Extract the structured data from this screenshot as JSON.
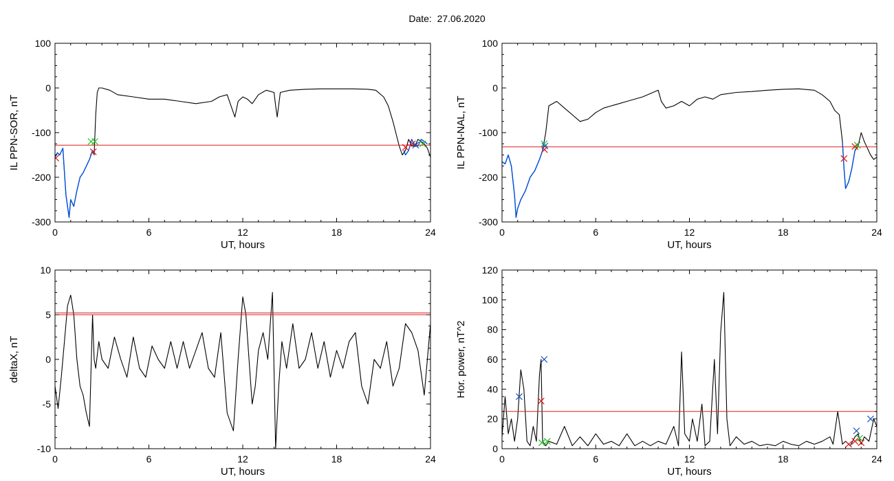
{
  "figure": {
    "date_label": "Date:",
    "date_value": "27.06.2020"
  },
  "colors": {
    "trace": "#000000",
    "highlight": "#0050dc",
    "threshold": "#dc1e1e",
    "marker_red": "#e01010",
    "marker_green": "#20c020",
    "marker_blue": "#1050c0",
    "axes": "#000000"
  },
  "chart_data": [
    {
      "type": "line",
      "id": "top-left",
      "xlabel": "UT, hours",
      "ylabel": "IL PPN-SOR, nT",
      "xlim": [
        0,
        24
      ],
      "ylim": [
        -300,
        100
      ],
      "xticks": [
        0,
        6,
        12,
        18,
        24
      ],
      "yticks": [
        -300,
        -200,
        -100,
        0,
        100
      ],
      "series": [
        {
          "role": "trace",
          "x": [
            0,
            0.15,
            0.3,
            0.5,
            0.7,
            0.8,
            0.9,
            1.0,
            1.2,
            1.4,
            1.6,
            1.8,
            2.0,
            2.2,
            2.4,
            2.5,
            2.6,
            2.7,
            2.8,
            3.0,
            3.5,
            4,
            5,
            6,
            7,
            8,
            9,
            10,
            10.5,
            11,
            11.2,
            11.5,
            11.7,
            12,
            12.3,
            12.6,
            13,
            13.5,
            14,
            14.1,
            14.2,
            14.4,
            15,
            16,
            17,
            18,
            19,
            20,
            20.5,
            21,
            21.3,
            21.6,
            22,
            22.2,
            22.4,
            22.6,
            22.8,
            23,
            23.2,
            23.4,
            23.6,
            23.8,
            24
          ],
          "y": [
            -155,
            -145,
            -150,
            -135,
            -240,
            -265,
            -290,
            -250,
            -265,
            -230,
            -200,
            -190,
            -175,
            -160,
            -140,
            -150,
            -60,
            -10,
            0,
            0,
            -5,
            -15,
            -20,
            -25,
            -25,
            -30,
            -35,
            -30,
            -20,
            -15,
            -35,
            -65,
            -30,
            -20,
            -25,
            -35,
            -15,
            -5,
            -10,
            -40,
            -65,
            -10,
            -5,
            -3,
            -2,
            -2,
            -2,
            -3,
            -5,
            -20,
            -40,
            -75,
            -130,
            -150,
            -140,
            -115,
            -130,
            -130,
            -115,
            -120,
            -125,
            -135,
            -155
          ]
        },
        {
          "role": "highlight",
          "x": [
            0,
            0.15,
            0.3,
            0.5,
            0.7,
            0.8,
            0.9,
            1.0,
            1.2,
            1.4,
            1.6,
            1.8,
            2.0,
            2.2,
            2.4,
            2.5
          ],
          "y": [
            -155,
            -145,
            -150,
            -135,
            -240,
            -265,
            -290,
            -250,
            -265,
            -230,
            -200,
            -190,
            -175,
            -160,
            -140,
            -150
          ]
        },
        {
          "role": "highlight",
          "x": [
            22.3,
            22.4,
            22.6,
            22.8,
            23,
            23.2,
            23.4,
            23.6,
            23.8
          ],
          "y": [
            -140,
            -150,
            -140,
            -115,
            -130,
            -130,
            -115,
            -120,
            -125
          ]
        },
        {
          "role": "threshold",
          "x": [
            0,
            24
          ],
          "y": [
            -128,
            -128
          ]
        }
      ],
      "markers": [
        {
          "x": 0.05,
          "y": -157,
          "color": "red"
        },
        {
          "x": 2.3,
          "y": -120,
          "color": "green"
        },
        {
          "x": 2.55,
          "y": -120,
          "color": "green"
        },
        {
          "x": 2.45,
          "y": -143,
          "color": "red"
        },
        {
          "x": 22.4,
          "y": -133,
          "color": "red"
        },
        {
          "x": 22.85,
          "y": -125,
          "color": "red"
        },
        {
          "x": 23.05,
          "y": -128,
          "color": "blue"
        },
        {
          "x": 23.5,
          "y": -125,
          "color": "green"
        }
      ]
    },
    {
      "type": "line",
      "id": "top-right",
      "xlabel": "UT, hours",
      "ylabel": "IL PPN-NAL, nT",
      "xlim": [
        0,
        24
      ],
      "ylim": [
        -300,
        100
      ],
      "xticks": [
        0,
        6,
        12,
        18,
        24
      ],
      "yticks": [
        -300,
        -200,
        -100,
        0,
        100
      ],
      "series": [
        {
          "role": "trace",
          "x": [
            0,
            0.2,
            0.4,
            0.6,
            0.8,
            0.9,
            1.0,
            1.2,
            1.5,
            1.8,
            2.1,
            2.4,
            2.6,
            2.7,
            2.8,
            3.0,
            3.5,
            4,
            4.5,
            5,
            5.5,
            6,
            6.5,
            7,
            7.5,
            8,
            9,
            10,
            10.2,
            10.5,
            11,
            11.5,
            12,
            12.5,
            13,
            13.5,
            14,
            15,
            16,
            17,
            18,
            19,
            20,
            20.5,
            21,
            21.3,
            21.6,
            21.8,
            21.9,
            22,
            22.2,
            22.4,
            22.6,
            22.8,
            23,
            23.2,
            23.4,
            23.6,
            23.8,
            24
          ],
          "y": [
            -165,
            -170,
            -150,
            -175,
            -240,
            -290,
            -270,
            -250,
            -230,
            -200,
            -185,
            -160,
            -140,
            -120,
            -100,
            -40,
            -30,
            -45,
            -60,
            -75,
            -70,
            -55,
            -45,
            -40,
            -35,
            -30,
            -20,
            -5,
            -30,
            -45,
            -40,
            -30,
            -40,
            -25,
            -20,
            -25,
            -15,
            -10,
            -8,
            -5,
            -3,
            -2,
            -5,
            -15,
            -30,
            -50,
            -60,
            -120,
            -180,
            -225,
            -210,
            -180,
            -140,
            -130,
            -100,
            -120,
            -135,
            -150,
            -160,
            -155
          ]
        },
        {
          "role": "highlight",
          "x": [
            0,
            0.2,
            0.4,
            0.6,
            0.8,
            0.9,
            1.0,
            1.2,
            1.5,
            1.8,
            2.1,
            2.4,
            2.6,
            2.7
          ],
          "y": [
            -165,
            -170,
            -150,
            -175,
            -240,
            -290,
            -270,
            -250,
            -230,
            -200,
            -185,
            -160,
            -140,
            -120
          ]
        },
        {
          "role": "highlight",
          "x": [
            21.8,
            21.9,
            22,
            22.2,
            22.4,
            22.6
          ],
          "y": [
            -120,
            -180,
            -225,
            -210,
            -180,
            -140
          ]
        },
        {
          "role": "threshold",
          "x": [
            0,
            24
          ],
          "y": [
            -132,
            -132
          ]
        }
      ],
      "markers": [
        {
          "x": 2.7,
          "y": -125,
          "color": "green"
        },
        {
          "x": 2.72,
          "y": -138,
          "color": "red"
        },
        {
          "x": 2.75,
          "y": -130,
          "color": "blue"
        },
        {
          "x": 21.9,
          "y": -158,
          "color": "red"
        },
        {
          "x": 22.6,
          "y": -131,
          "color": "red"
        },
        {
          "x": 22.75,
          "y": -128,
          "color": "green"
        }
      ]
    },
    {
      "type": "line",
      "id": "bottom-left",
      "xlabel": "UT, hours",
      "ylabel": "deltaX, nT",
      "xlim": [
        0,
        24
      ],
      "ylim": [
        -10,
        10
      ],
      "xticks": [
        0,
        6,
        12,
        18,
        24
      ],
      "yticks": [
        -10,
        -5,
        0,
        5,
        10
      ],
      "series": [
        {
          "role": "trace",
          "x": [
            0,
            0.2,
            0.4,
            0.6,
            0.8,
            1.0,
            1.2,
            1.4,
            1.6,
            1.8,
            2.0,
            2.2,
            2.4,
            2.5,
            2.6,
            2.8,
            3.0,
            3.4,
            3.8,
            4.2,
            4.6,
            5.0,
            5.4,
            5.8,
            6.2,
            6.6,
            7.0,
            7.4,
            7.8,
            8.2,
            8.6,
            9.0,
            9.4,
            9.8,
            10.2,
            10.6,
            11.0,
            11.4,
            11.7,
            12.0,
            12.2,
            12.4,
            12.6,
            12.8,
            13.0,
            13.3,
            13.6,
            13.9,
            14.1,
            14.3,
            14.5,
            14.8,
            15.2,
            15.6,
            16.0,
            16.4,
            16.8,
            17.2,
            17.6,
            18.0,
            18.4,
            18.8,
            19.2,
            19.6,
            20.0,
            20.4,
            20.8,
            21.2,
            21.6,
            22.0,
            22.4,
            22.8,
            23.2,
            23.6,
            24
          ],
          "y": [
            -3,
            -5.5,
            -2,
            2,
            6,
            7.2,
            5,
            0,
            -3,
            -4,
            -6,
            -7.5,
            5,
            0,
            -1,
            2,
            0,
            -1,
            2.5,
            0,
            -2,
            2.5,
            -1,
            -2,
            1.5,
            0,
            -1,
            2,
            -1,
            2,
            -1,
            1,
            3,
            -1,
            -2,
            3,
            -6,
            -8,
            0,
            7,
            5,
            0,
            -5,
            -3,
            1,
            3,
            0,
            7.5,
            -10,
            -3,
            2,
            -1,
            4,
            -1,
            0,
            3,
            -1,
            2,
            -2,
            1,
            -1,
            2,
            3,
            -3,
            -5,
            0,
            -1,
            2,
            -3,
            -1,
            4,
            3,
            1,
            -4,
            4
          ]
        },
        {
          "role": "threshold",
          "x": [
            0,
            24
          ],
          "y": [
            5.2,
            5.2
          ]
        },
        {
          "role": "threshold",
          "x": [
            0,
            24
          ],
          "y": [
            5.0,
            5.0
          ]
        }
      ],
      "markers": []
    },
    {
      "type": "line",
      "id": "bottom-right",
      "xlabel": "UT, hours",
      "ylabel": "Hor. power, nT^2",
      "xlim": [
        0,
        24
      ],
      "ylim": [
        0,
        120
      ],
      "xticks": [
        0,
        6,
        12,
        18,
        24
      ],
      "yticks": [
        0,
        20,
        40,
        60,
        80,
        100,
        120
      ],
      "series": [
        {
          "role": "trace",
          "x": [
            0,
            0.2,
            0.4,
            0.6,
            0.8,
            1.0,
            1.2,
            1.4,
            1.6,
            1.8,
            2.0,
            2.2,
            2.4,
            2.5,
            2.6,
            2.8,
            3.0,
            3.5,
            4.0,
            4.5,
            5.0,
            5.5,
            6.0,
            6.5,
            7.0,
            7.5,
            8.0,
            8.5,
            9.0,
            9.5,
            10.0,
            10.5,
            11.0,
            11.3,
            11.5,
            11.7,
            12.0,
            12.2,
            12.5,
            12.8,
            13.0,
            13.3,
            13.6,
            13.8,
            14.0,
            14.2,
            14.4,
            14.6,
            15.0,
            15.5,
            16,
            16.5,
            17,
            17.5,
            18,
            18.5,
            19,
            19.5,
            20,
            20.5,
            21,
            21.2,
            21.5,
            21.8,
            22.0,
            22.3,
            22.6,
            22.8,
            23.0,
            23.2,
            23.5,
            23.8,
            24
          ],
          "y": [
            8,
            35,
            10,
            20,
            5,
            20,
            53,
            40,
            5,
            2,
            15,
            5,
            50,
            60,
            5,
            2,
            5,
            3,
            15,
            2,
            8,
            2,
            10,
            3,
            5,
            2,
            10,
            2,
            5,
            2,
            5,
            3,
            15,
            2,
            65,
            10,
            5,
            20,
            5,
            30,
            2,
            5,
            60,
            10,
            78,
            105,
            20,
            2,
            8,
            3,
            5,
            2,
            3,
            2,
            5,
            3,
            2,
            5,
            3,
            5,
            8,
            3,
            25,
            3,
            5,
            2,
            8,
            10,
            3,
            8,
            5,
            20,
            15
          ]
        },
        {
          "role": "threshold",
          "x": [
            0,
            24
          ],
          "y": [
            25,
            25
          ]
        }
      ],
      "markers": [
        {
          "x": 1.1,
          "y": 35,
          "color": "blue"
        },
        {
          "x": 2.5,
          "y": 32,
          "color": "red"
        },
        {
          "x": 2.55,
          "y": 4,
          "color": "green"
        },
        {
          "x": 2.7,
          "y": 60,
          "color": "blue"
        },
        {
          "x": 2.9,
          "y": 5,
          "color": "green"
        },
        {
          "x": 22.2,
          "y": 3,
          "color": "red"
        },
        {
          "x": 22.6,
          "y": 5,
          "color": "red"
        },
        {
          "x": 22.7,
          "y": 12,
          "color": "blue"
        },
        {
          "x": 22.9,
          "y": 7,
          "color": "green"
        },
        {
          "x": 23.0,
          "y": 4,
          "color": "red"
        },
        {
          "x": 23.6,
          "y": 20,
          "color": "blue"
        }
      ]
    }
  ]
}
